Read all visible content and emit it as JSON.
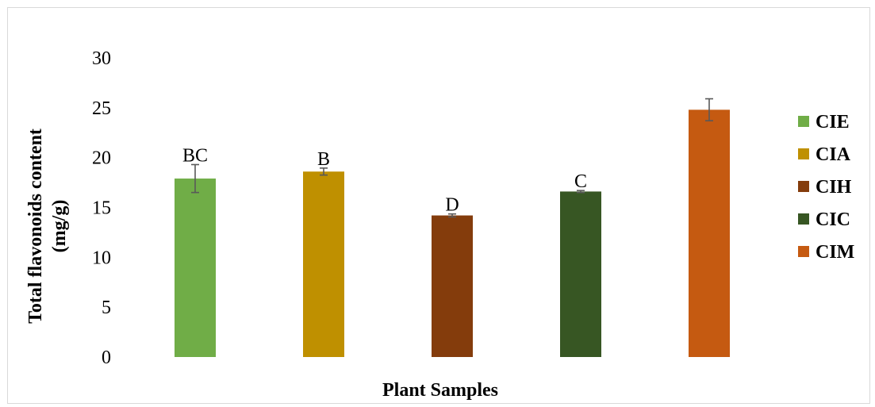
{
  "chart_data": {
    "type": "bar",
    "categories": [
      "CIE",
      "CIA",
      "CIH",
      "CIC",
      "CIM"
    ],
    "values": [
      17.9,
      18.6,
      14.2,
      16.6,
      24.8
    ],
    "errors": [
      1.4,
      0.35,
      0.15,
      0.1,
      1.1
    ],
    "bar_labels": [
      "BC",
      "B",
      "D",
      "C",
      ""
    ],
    "colors": [
      "#70ad47",
      "#bf9000",
      "#843c0c",
      "#375623",
      "#c55a11"
    ],
    "error_bar_color": "#595959",
    "xlabel": "Plant Samples",
    "ylabel": [
      "Total flavonoids content",
      "(mg/g)"
    ],
    "ylim": [
      0,
      30
    ],
    "yticks": [
      0,
      5,
      10,
      15,
      20,
      25,
      30
    ],
    "grid": false,
    "legend": {
      "placement": "right",
      "entries": [
        "CIE",
        "CIA",
        "CIH",
        "CIC",
        "CIM"
      ]
    }
  }
}
